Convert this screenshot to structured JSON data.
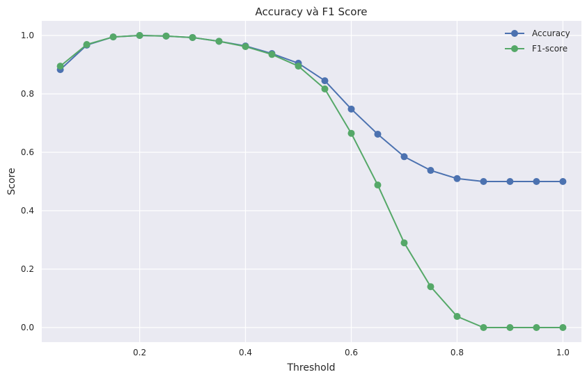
{
  "chart_data": {
    "type": "line",
    "title": "Accuracy và F1 Score",
    "xlabel": "Threshold",
    "ylabel": "Score",
    "xlim": [
      0.015,
      1.035
    ],
    "ylim": [
      -0.05,
      1.05
    ],
    "xticks": [
      0.2,
      0.4,
      0.6,
      0.8,
      1.0
    ],
    "xtick_labels": [
      "0.2",
      "0.4",
      "0.6",
      "0.8",
      "1.0"
    ],
    "yticks": [
      0.0,
      0.2,
      0.4,
      0.6,
      0.8,
      1.0
    ],
    "ytick_labels": [
      "0.0",
      "0.2",
      "0.4",
      "0.6",
      "0.8",
      "1.0"
    ],
    "grid": true,
    "legend_position": "top-right",
    "x": [
      0.05,
      0.1,
      0.15,
      0.2,
      0.25,
      0.3,
      0.35,
      0.4,
      0.45,
      0.5,
      0.55,
      0.6,
      0.65,
      0.7,
      0.75,
      0.8,
      0.85,
      0.9,
      0.95,
      1.0
    ],
    "series": [
      {
        "name": "Accuracy",
        "color": "#4c72b0",
        "values": [
          0.883,
          0.967,
          0.995,
          1.0,
          0.998,
          0.993,
          0.98,
          0.964,
          0.938,
          0.905,
          0.845,
          0.748,
          0.662,
          0.585,
          0.538,
          0.51,
          0.5,
          0.5,
          0.5,
          0.5
        ]
      },
      {
        "name": "F1-score",
        "color": "#55a868",
        "values": [
          0.895,
          0.969,
          0.995,
          1.0,
          0.998,
          0.993,
          0.98,
          0.962,
          0.935,
          0.895,
          0.817,
          0.665,
          0.488,
          0.29,
          0.14,
          0.038,
          0.0,
          0.0,
          0.0,
          0.0
        ]
      }
    ]
  }
}
